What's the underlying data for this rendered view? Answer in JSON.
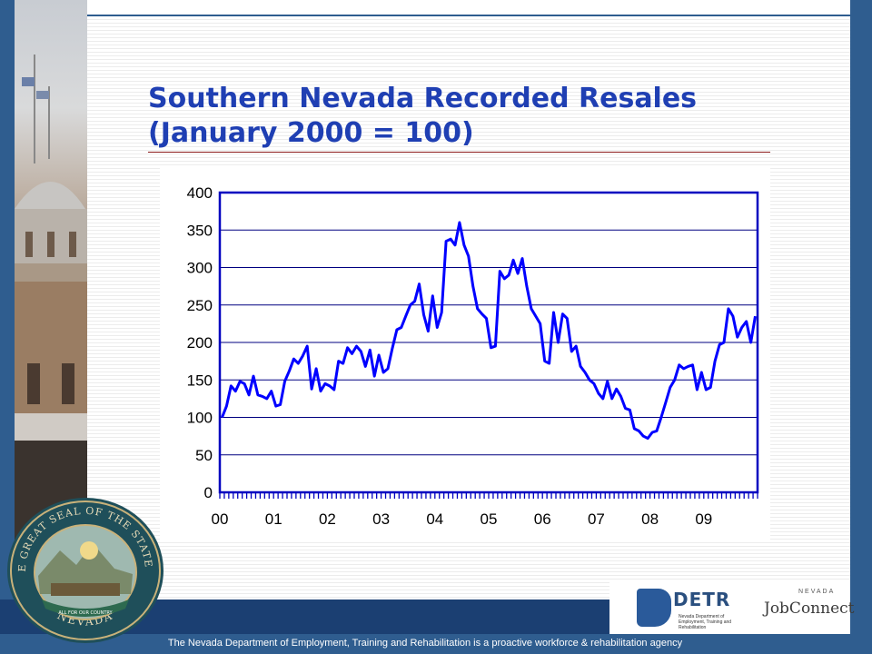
{
  "slide": {
    "title_line1": "Southern Nevada Recorded Resales",
    "title_line2": "(January 2000 = 100)",
    "footer_text": "The Nevada Department of Employment, Training and Rehabilitation is a proactive workforce & rehabilitation agency",
    "seal_text_top": "THE GREAT SEAL OF THE STATE OF",
    "seal_text_bottom": "NEVADA",
    "seal_motto": "ALL FOR OUR COUNTRY",
    "logo_detr": "DETR",
    "logo_detr_sub": "Nevada Department of Employment, Training and Rehabilitation",
    "logo_jobconnect": "JobConnect",
    "logo_jobconnect_state": "NEVADA",
    "colors": {
      "frame": "#2f5d8f",
      "title": "#1f3fb3",
      "line": "#0000ff",
      "footer": "#1b3f72"
    }
  },
  "chart_data": {
    "type": "line",
    "title": "",
    "xlabel": "",
    "ylabel": "",
    "ylim": [
      0,
      400
    ],
    "yticks": [
      0,
      50,
      100,
      150,
      200,
      250,
      300,
      350,
      400
    ],
    "xtick_labels": [
      "00",
      "01",
      "02",
      "03",
      "04",
      "05",
      "06",
      "07",
      "08",
      "09"
    ],
    "x_unit": "month, January 2000 onward",
    "grid": true,
    "legend": "none",
    "series": [
      {
        "values": [
          100,
          115,
          142,
          135,
          148,
          145,
          130,
          155,
          130,
          128,
          125,
          135,
          115,
          117,
          148,
          162,
          178,
          172,
          182,
          195,
          138,
          165,
          135,
          145,
          142,
          137,
          175,
          172,
          193,
          185,
          195,
          188,
          168,
          190,
          155,
          183,
          160,
          165,
          192,
          217,
          220,
          235,
          250,
          255,
          278,
          237,
          215,
          262,
          220,
          240,
          335,
          338,
          330,
          360,
          330,
          315,
          275,
          245,
          238,
          232,
          193,
          195,
          295,
          285,
          290,
          310,
          292,
          312,
          275,
          245,
          235,
          225,
          175,
          172,
          240,
          200,
          238,
          232,
          188,
          195,
          168,
          160,
          150,
          145,
          132,
          125,
          148,
          125,
          138,
          128,
          112,
          110,
          85,
          82,
          75,
          72,
          80,
          82,
          100,
          120,
          140,
          150,
          170,
          165,
          168,
          170,
          137,
          160,
          137,
          140,
          175,
          197,
          200,
          245,
          235,
          207,
          220,
          228,
          200,
          235
        ]
      }
    ]
  }
}
